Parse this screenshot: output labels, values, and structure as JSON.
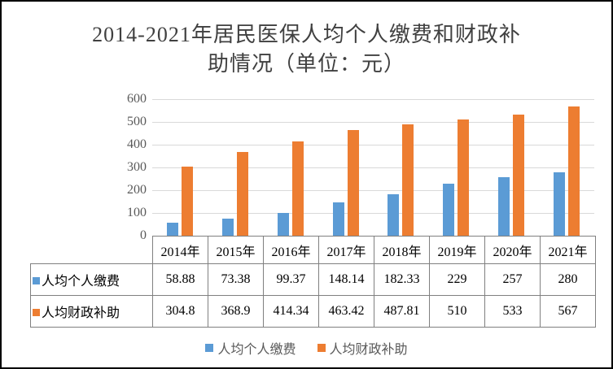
{
  "title": {
    "line1": "2014-2021年居民医保人均个人缴费和财政补",
    "line2": "助情况（单位：元）"
  },
  "colors": {
    "series1": "#5B9BD5",
    "series2": "#ED7D31",
    "gridline": "#D9D9D9",
    "axis_line": "#A6A6A6",
    "axis_label": "#595959",
    "table_border": "#808080",
    "table_text": "#000000",
    "title_text": "#404040",
    "frame_border": "#000000"
  },
  "chart_data": {
    "type": "bar",
    "title": "2014-2021年居民医保人均个人缴费和财政补助情况（单位：元）",
    "categories": [
      "2014年",
      "2015年",
      "2016年",
      "2017年",
      "2018年",
      "2019年",
      "2020年",
      "2021年"
    ],
    "series": [
      {
        "name": "人均个人缴费",
        "color": "#5B9BD5",
        "values": [
          58.88,
          73.38,
          99.37,
          148.14,
          182.33,
          229,
          257,
          280
        ],
        "display": [
          "58.88",
          "73.38",
          "99.37",
          "148.14",
          "182.33",
          "229",
          "257",
          "280"
        ]
      },
      {
        "name": "人均财政补助",
        "color": "#ED7D31",
        "values": [
          304.8,
          368.9,
          414.34,
          463.42,
          487.81,
          510,
          533,
          567
        ],
        "display": [
          "304.8",
          "368.9",
          "414.34",
          "463.42",
          "487.81",
          "510",
          "533",
          "567"
        ]
      }
    ],
    "xlabel": "",
    "ylabel": "",
    "ylim": [
      0,
      600
    ],
    "ytick_step": 100,
    "yticks": [
      "0",
      "100",
      "200",
      "300",
      "400",
      "500",
      "600"
    ],
    "grid": true,
    "legend_position": "bottom",
    "data_table_shown": true
  }
}
